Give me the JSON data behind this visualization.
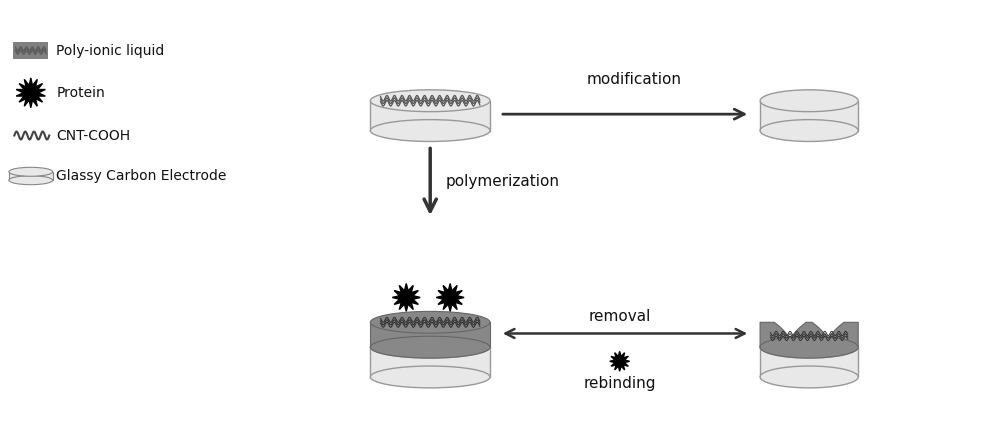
{
  "bg_color": "#ffffff",
  "electrode_color": "#e8e8e8",
  "electrode_edge": "#888888",
  "cnt_color": "#888888",
  "pil_color": "#808080",
  "protein_color": "#111111",
  "text_color": "#111111",
  "legend_items": [
    {
      "label": "Poly-ionic liquid",
      "type": "rect",
      "color": "#808080"
    },
    {
      "label": "Protein",
      "type": "star",
      "color": "#111111"
    },
    {
      "label": "CNT-COOH",
      "type": "wave",
      "color": "#555555"
    },
    {
      "label": "Glassy Carbon Electrode",
      "type": "cylinder",
      "color": "#e8e8e8"
    }
  ],
  "labels": {
    "modification": "modification",
    "polymerization": "polymerization",
    "removal": "removal",
    "rebinding": "rebinding"
  }
}
